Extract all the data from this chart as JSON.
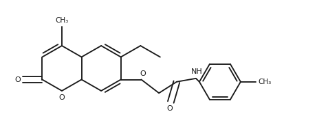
{
  "bg_color": "#ffffff",
  "line_color": "#1a1a1a",
  "line_width": 1.35,
  "dbo": 0.013,
  "font_size": 8.0,
  "figsize": [
    4.61,
    1.86
  ],
  "dpi": 100,
  "xlim": [
    0,
    461
  ],
  "ylim": [
    0,
    186
  ]
}
